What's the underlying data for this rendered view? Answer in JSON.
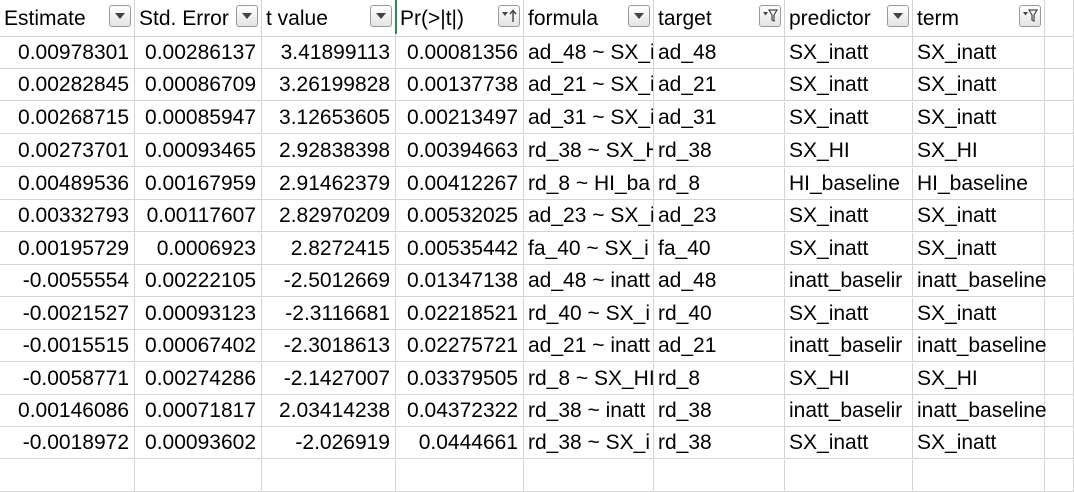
{
  "columns": [
    {
      "label": "Estimate",
      "filter": "dropdown"
    },
    {
      "label": "Std. Error",
      "filter": "dropdown"
    },
    {
      "label": "t value",
      "filter": "dropdown"
    },
    {
      "label": "Pr(>|t|)",
      "filter": "sort-ascending"
    },
    {
      "label": "formula",
      "filter": "dropdown"
    },
    {
      "label": "target",
      "filter": "filtered"
    },
    {
      "label": "predictor",
      "filter": "dropdown"
    },
    {
      "label": "term",
      "filter": "filtered"
    }
  ],
  "rows": [
    [
      "0.00978301",
      "0.00286137",
      "3.41899113",
      "0.00081356",
      "ad_48 ~ SX_i",
      "ad_48",
      "SX_inatt",
      "SX_inatt"
    ],
    [
      "0.00282845",
      "0.00086709",
      "3.26199828",
      "0.00137738",
      "ad_21 ~ SX_i",
      "ad_21",
      "SX_inatt",
      "SX_inatt"
    ],
    [
      "0.00268715",
      "0.00085947",
      "3.12653605",
      "0.00213497",
      "ad_31 ~ SX_i",
      "ad_31",
      "SX_inatt",
      "SX_inatt"
    ],
    [
      "0.00273701",
      "0.00093465",
      "2.92838398",
      "0.00394663",
      "rd_38 ~ SX_H",
      "rd_38",
      "SX_HI",
      "SX_HI"
    ],
    [
      "0.00489536",
      "0.00167959",
      "2.91462379",
      "0.00412267",
      "rd_8 ~ HI_ba",
      "rd_8",
      "HI_baseline",
      "HI_baseline"
    ],
    [
      "0.00332793",
      "0.00117607",
      "2.82970209",
      "0.00532025",
      "ad_23 ~ SX_i",
      "ad_23",
      "SX_inatt",
      "SX_inatt"
    ],
    [
      "0.00195729",
      "0.0006923",
      "2.8272415",
      "0.00535442",
      "fa_40 ~ SX_i",
      "fa_40",
      "SX_inatt",
      "SX_inatt"
    ],
    [
      "-0.0055554",
      "0.00222105",
      "-2.5012669",
      "0.01347138",
      "ad_48 ~ inatt",
      "ad_48",
      "inatt_baselir",
      "inatt_baseline"
    ],
    [
      "-0.0021527",
      "0.00093123",
      "-2.3116681",
      "0.02218521",
      "rd_40 ~ SX_i",
      "rd_40",
      "SX_inatt",
      "SX_inatt"
    ],
    [
      "-0.0015515",
      "0.00067402",
      "-2.3018613",
      "0.02275721",
      "ad_21 ~ inatt",
      "ad_21",
      "inatt_baselir",
      "inatt_baseline"
    ],
    [
      "-0.0058771",
      "0.00274286",
      "-2.1427007",
      "0.03379505",
      "rd_8 ~ SX_HI",
      "rd_8",
      "SX_HI",
      "SX_HI"
    ],
    [
      "0.00146086",
      "0.00071817",
      "2.03414238",
      "0.04372322",
      "rd_38 ~ inatt",
      "rd_38",
      "inatt_baselir",
      "inatt_baseline"
    ],
    [
      "-0.0018972",
      "0.00093602",
      "-2.026919",
      "0.0444661",
      "rd_38 ~ SX_i",
      "rd_38",
      "SX_inatt",
      "SX_inatt"
    ]
  ],
  "colors": {
    "grid": "#d4d4d4",
    "selected_column_border": "#2e8b57"
  }
}
